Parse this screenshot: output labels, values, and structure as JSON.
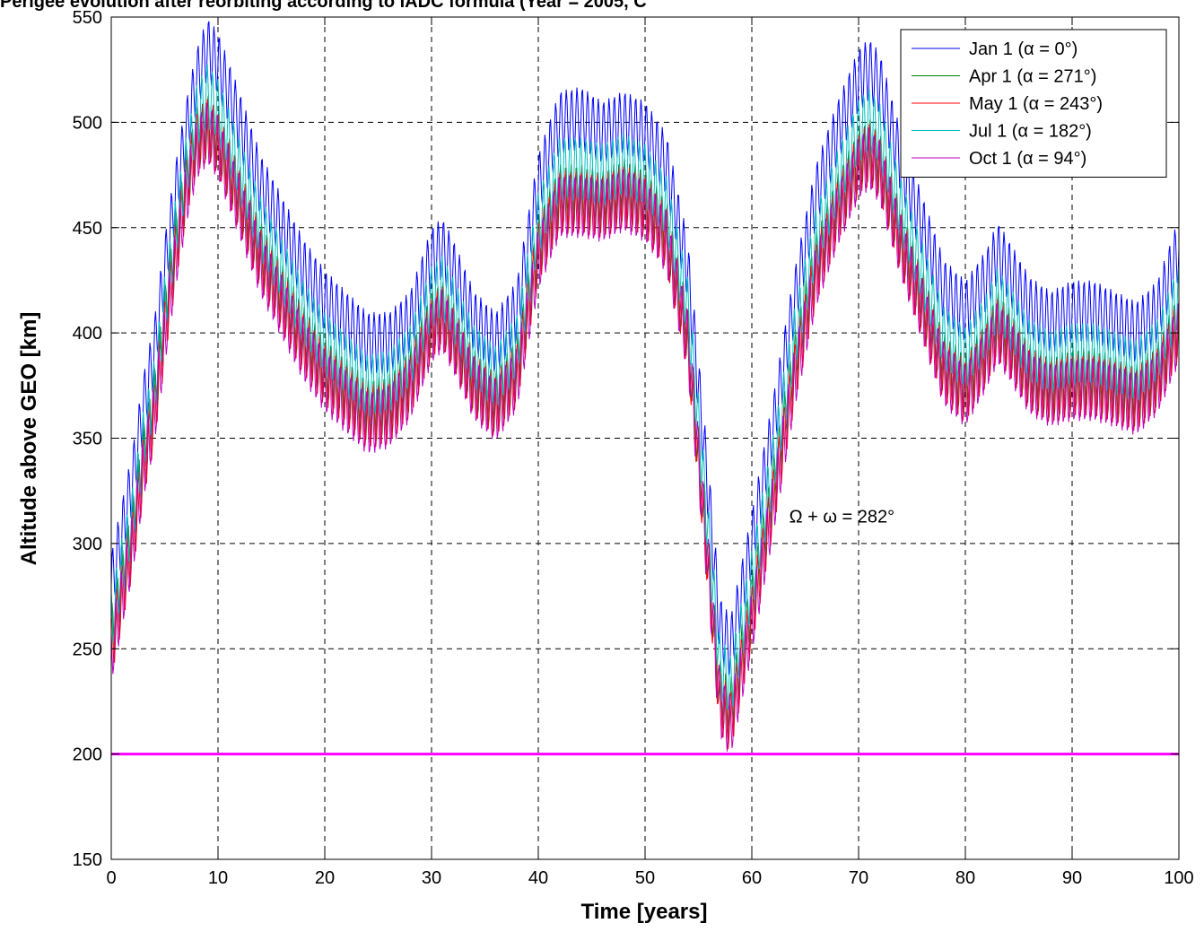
{
  "chart_data": {
    "type": "line",
    "title": "Perigee evolution after reorbiting according to IADC formula (Year = 2005, C",
    "xlabel": "Time [years]",
    "ylabel": "Altitude above GEO [km]",
    "xlim": [
      0,
      100
    ],
    "ylim": [
      150,
      550
    ],
    "xticks": [
      "0",
      "10",
      "20",
      "30",
      "40",
      "50",
      "60",
      "70",
      "80",
      "90",
      "100"
    ],
    "yticks": [
      "150",
      "200",
      "250",
      "300",
      "350",
      "400",
      "450",
      "500",
      "550"
    ],
    "grid": true,
    "legend_position": "top-right",
    "annotation": {
      "text": "Ω + ω = 282°",
      "x": 63.5,
      "y": 310
    },
    "reference_line": {
      "y": 200,
      "color": "#ff00ff"
    },
    "oscillation_amplitude": 15,
    "series": [
      {
        "name": "Jan 1 (α = 0°)",
        "color": "#0000ff",
        "x": [
          0,
          1,
          2,
          3,
          4,
          5,
          6,
          7,
          8,
          9,
          10,
          12,
          14,
          16,
          18,
          20,
          22,
          24,
          26,
          28,
          30,
          31,
          32,
          34,
          36,
          38,
          40,
          42,
          44,
          46,
          48,
          50,
          52,
          54,
          56,
          57,
          58,
          60,
          62,
          64,
          66,
          68,
          70,
          71,
          72,
          74,
          76,
          78,
          80,
          82,
          83,
          84,
          86,
          88,
          90,
          92,
          94,
          96,
          98,
          100
        ],
        "y": [
          280,
          305,
          330,
          365,
          390,
          430,
          465,
          495,
          520,
          535,
          528,
          500,
          470,
          450,
          430,
          415,
          405,
          395,
          395,
          405,
          435,
          440,
          430,
          405,
          395,
          410,
          470,
          500,
          502,
          495,
          500,
          495,
          480,
          430,
          320,
          260,
          250,
          300,
          355,
          415,
          465,
          495,
          520,
          525,
          518,
          480,
          450,
          420,
          410,
          425,
          438,
          430,
          412,
          405,
          410,
          410,
          405,
          400,
          410,
          440
        ]
      },
      {
        "name": "Apr 1 (α = 271°)",
        "color": "#008000",
        "x": [
          0,
          1,
          2,
          3,
          4,
          5,
          6,
          7,
          8,
          9,
          10,
          12,
          14,
          16,
          18,
          20,
          22,
          24,
          26,
          28,
          30,
          31,
          32,
          34,
          36,
          38,
          40,
          42,
          44,
          46,
          48,
          50,
          52,
          54,
          56,
          57,
          58,
          60,
          62,
          64,
          66,
          68,
          70,
          71,
          72,
          74,
          76,
          78,
          80,
          82,
          83,
          84,
          86,
          88,
          90,
          92,
          94,
          96,
          98,
          100
        ],
        "y": [
          255,
          280,
          305,
          340,
          365,
          405,
          440,
          470,
          492,
          498,
          492,
          465,
          438,
          418,
          398,
          383,
          373,
          363,
          365,
          378,
          405,
          410,
          400,
          377,
          367,
          383,
          440,
          465,
          465,
          462,
          468,
          463,
          448,
          400,
          290,
          230,
          220,
          270,
          325,
          385,
          432,
          460,
          482,
          487,
          480,
          445,
          415,
          385,
          375,
          392,
          405,
          398,
          380,
          374,
          378,
          378,
          374,
          370,
          380,
          405
        ]
      },
      {
        "name": "May 1 (α = 243°)",
        "color": "#ff0000",
        "x": [
          0,
          1,
          2,
          3,
          4,
          5,
          6,
          7,
          8,
          9,
          10,
          12,
          14,
          16,
          18,
          20,
          22,
          24,
          26,
          28,
          30,
          31,
          32,
          34,
          36,
          38,
          40,
          42,
          44,
          46,
          48,
          50,
          52,
          54,
          56,
          57,
          58,
          60,
          62,
          64,
          66,
          68,
          70,
          71,
          72,
          74,
          76,
          78,
          80,
          82,
          83,
          84,
          86,
          88,
          90,
          92,
          94,
          96,
          98,
          100
        ],
        "y": [
          250,
          275,
          300,
          335,
          360,
          400,
          436,
          468,
          490,
          497,
          490,
          463,
          435,
          415,
          395,
          380,
          370,
          360,
          362,
          375,
          402,
          408,
          398,
          375,
          365,
          380,
          438,
          462,
          462,
          460,
          465,
          460,
          445,
          397,
          285,
          225,
          215,
          265,
          320,
          380,
          428,
          457,
          480,
          485,
          478,
          442,
          412,
          382,
          372,
          390,
          402,
          395,
          378,
          372,
          375,
          375,
          372,
          368,
          378,
          402
        ]
      },
      {
        "name": "Jul 1 (α = 182°)",
        "color": "#00bfbf",
        "x": [
          0,
          1,
          2,
          3,
          4,
          5,
          6,
          7,
          8,
          9,
          10,
          12,
          14,
          16,
          18,
          20,
          22,
          24,
          26,
          28,
          30,
          31,
          32,
          34,
          36,
          38,
          40,
          42,
          44,
          46,
          48,
          50,
          52,
          54,
          56,
          57,
          58,
          60,
          62,
          64,
          66,
          68,
          70,
          71,
          72,
          74,
          76,
          78,
          80,
          82,
          83,
          84,
          86,
          88,
          90,
          92,
          94,
          96,
          98,
          100
        ],
        "y": [
          262,
          288,
          312,
          348,
          372,
          412,
          448,
          478,
          503,
          513,
          506,
          478,
          450,
          430,
          410,
          395,
          385,
          375,
          377,
          389,
          417,
          422,
          412,
          389,
          379,
          394,
          452,
          478,
          478,
          475,
          480,
          475,
          460,
          412,
          300,
          242,
          232,
          282,
          337,
          397,
          444,
          472,
          496,
          501,
          494,
          458,
          428,
          398,
          388,
          404,
          416,
          409,
          392,
          386,
          390,
          390,
          386,
          382,
          392,
          418
        ]
      },
      {
        "name": "Oct 1 (α = 94°)",
        "color": "#bf00bf",
        "x": [
          0,
          1,
          2,
          3,
          4,
          5,
          6,
          7,
          8,
          9,
          10,
          12,
          14,
          16,
          18,
          20,
          22,
          24,
          26,
          28,
          30,
          31,
          32,
          34,
          36,
          38,
          40,
          42,
          44,
          46,
          48,
          50,
          52,
          54,
          56,
          57,
          58,
          60,
          62,
          64,
          66,
          68,
          70,
          71,
          72,
          74,
          76,
          78,
          80,
          82,
          83,
          84,
          86,
          88,
          90,
          92,
          94,
          96,
          98,
          100
        ],
        "y": [
          248,
          274,
          300,
          335,
          360,
          398,
          434,
          465,
          487,
          495,
          488,
          460,
          432,
          412,
          392,
          377,
          367,
          357,
          360,
          373,
          400,
          406,
          396,
          373,
          363,
          378,
          435,
          460,
          460,
          458,
          463,
          458,
          443,
          395,
          283,
          223,
          213,
          262,
          318,
          378,
          426,
          455,
          478,
          483,
          476,
          440,
          410,
          380,
          370,
          388,
          400,
          393,
          376,
          370,
          373,
          373,
          370,
          366,
          376,
          400
        ]
      }
    ]
  }
}
